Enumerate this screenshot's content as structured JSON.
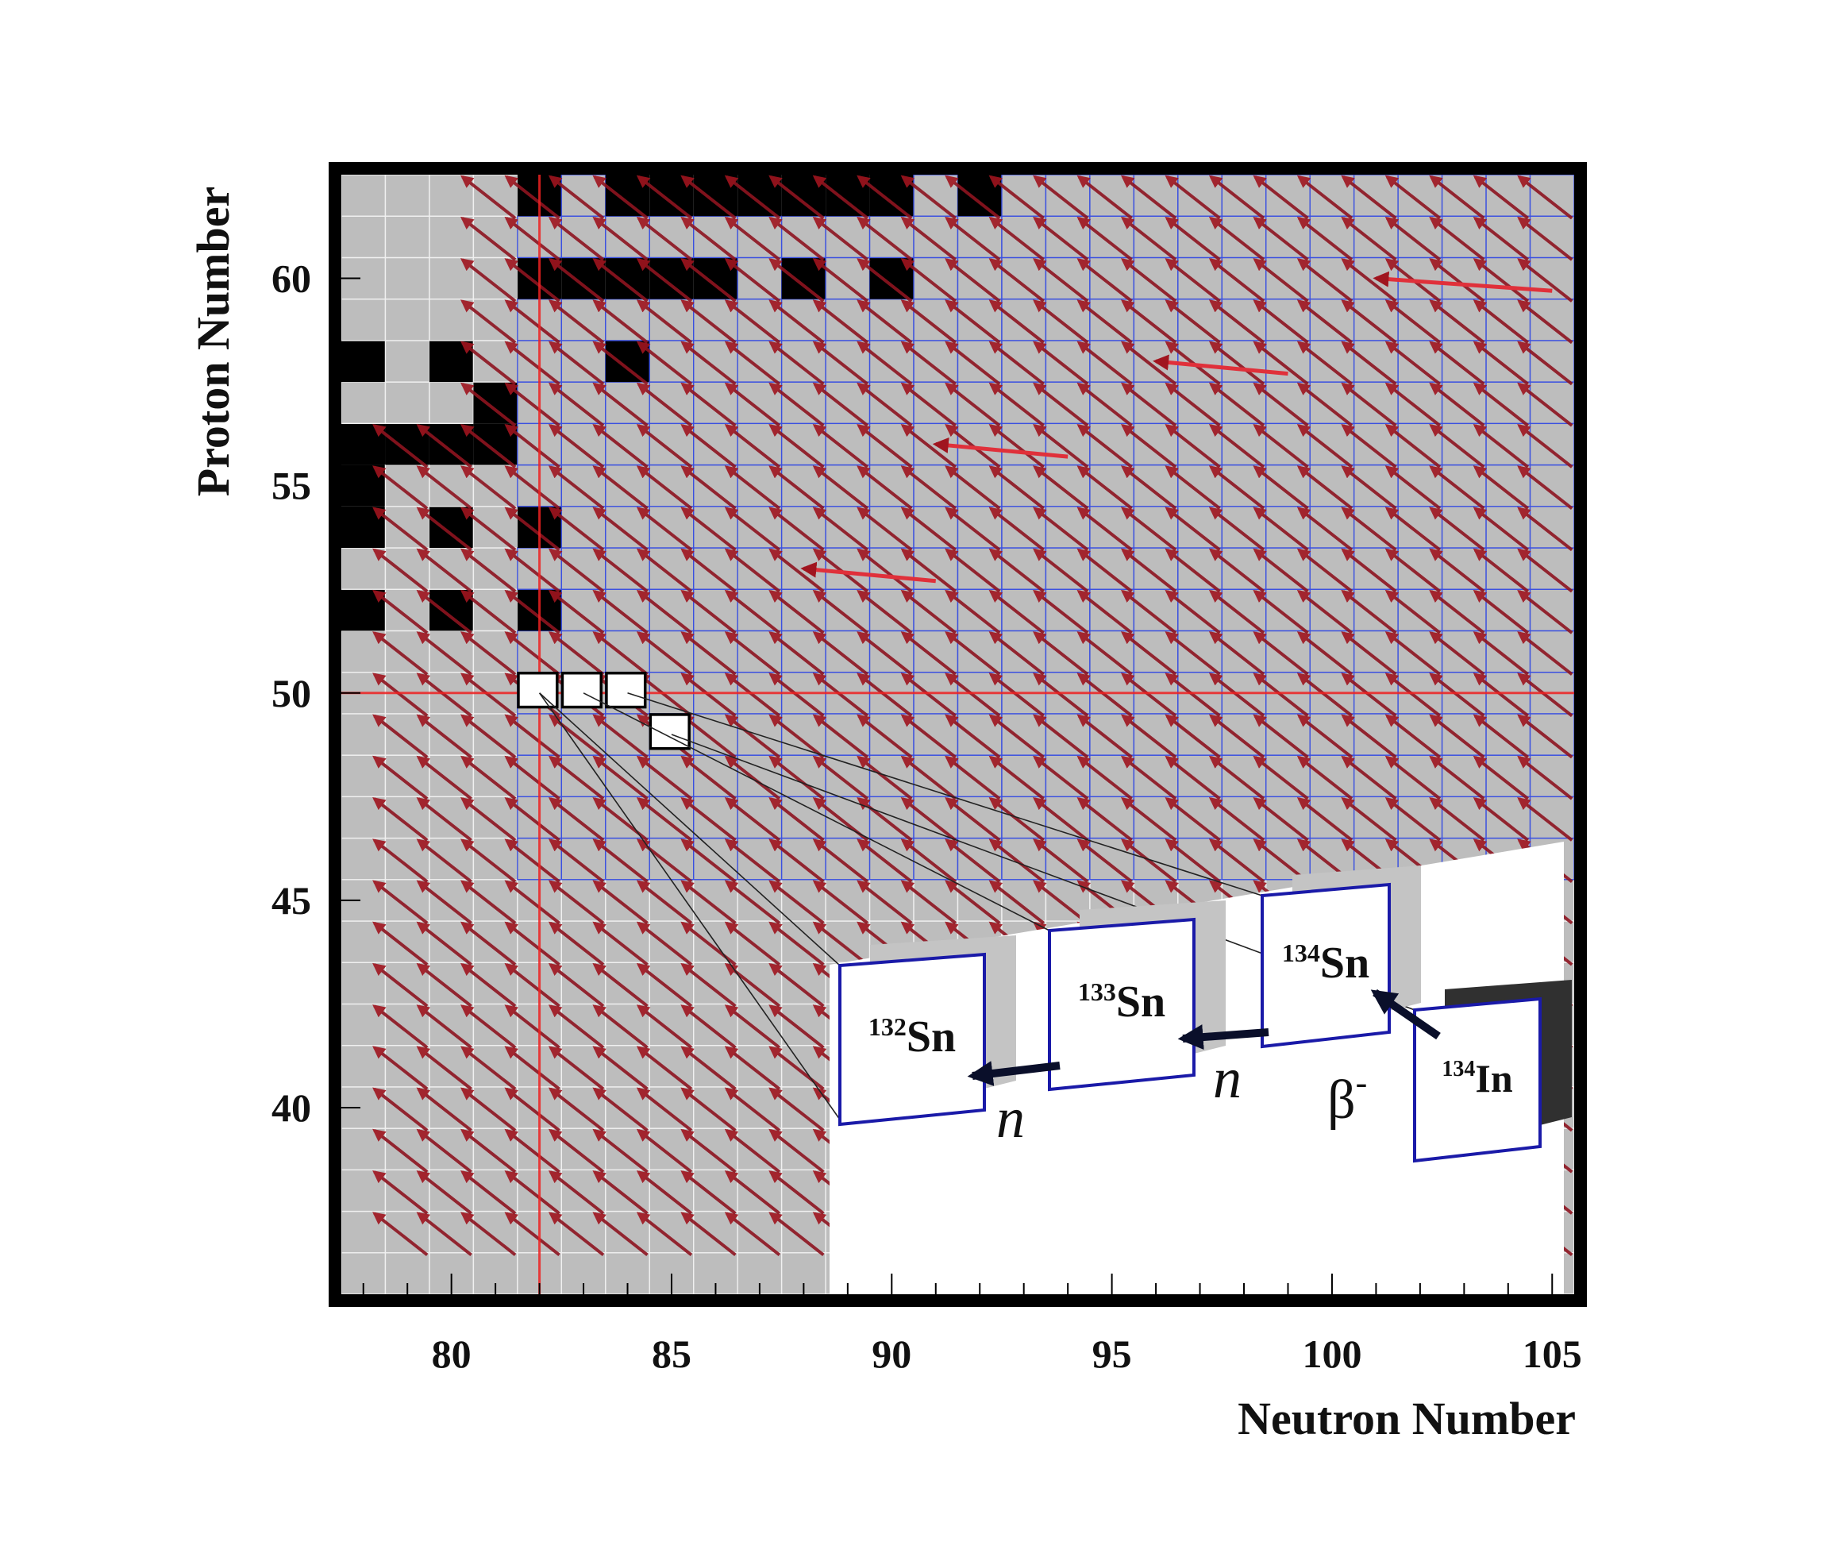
{
  "chart_data": {
    "type": "heatmap",
    "title": "",
    "xlabel": "Neutron Number",
    "ylabel": "Proton Number",
    "xlim": [
      77.5,
      105.5
    ],
    "ylim": [
      35.5,
      62.5
    ],
    "x_ticks": [
      80,
      85,
      90,
      95,
      100,
      105
    ],
    "y_ticks": [
      40,
      45,
      50,
      55,
      60
    ],
    "magic_lines": {
      "neutron": 82,
      "proton": 50,
      "color": "#ee2222"
    },
    "stable_nuclei": [
      [
        82,
        62
      ],
      [
        84,
        62
      ],
      [
        85,
        62
      ],
      [
        86,
        62
      ],
      [
        87,
        62
      ],
      [
        88,
        62
      ],
      [
        89,
        62
      ],
      [
        90,
        62
      ],
      [
        92,
        62
      ],
      [
        82,
        60
      ],
      [
        83,
        60
      ],
      [
        84,
        60
      ],
      [
        85,
        60
      ],
      [
        86,
        60
      ],
      [
        88,
        60
      ],
      [
        90,
        60
      ],
      [
        78,
        58
      ],
      [
        80,
        58
      ],
      [
        84,
        58
      ],
      [
        81,
        57
      ],
      [
        78,
        56
      ],
      [
        79,
        56
      ],
      [
        80,
        56
      ],
      [
        81,
        56
      ],
      [
        78,
        55
      ],
      [
        78,
        54
      ],
      [
        80,
        54
      ],
      [
        82,
        54
      ],
      [
        78,
        52
      ],
      [
        80,
        52
      ],
      [
        82,
        52
      ]
    ],
    "highlighted_nuclei": [
      [
        82,
        50
      ],
      [
        83,
        50
      ],
      [
        84,
        50
      ],
      [
        85,
        49
      ]
    ],
    "inset": {
      "nuclei": [
        {
          "mass": "132",
          "symbol": "Sn"
        },
        {
          "mass": "133",
          "symbol": "Sn"
        },
        {
          "mass": "134",
          "symbol": "Sn"
        },
        {
          "mass": "134",
          "symbol": "In"
        }
      ],
      "processes": [
        {
          "from": "134In",
          "to": "134Sn",
          "label": "β",
          "superscript": "-"
        },
        {
          "from": "134Sn",
          "to": "133Sn",
          "label": "n"
        },
        {
          "from": "133Sn",
          "to": "132Sn",
          "label": "n"
        }
      ]
    },
    "colors": {
      "unknown": "#bdbdbd",
      "stable": "#000000",
      "cell_border_upper": "#3a50e0",
      "cell_border_lower": "#f0f0f0",
      "cyan": "#21c4f2",
      "green": "#33cc33",
      "red": "#ee2211",
      "arrow": "#8e1420",
      "flow_warm": "#ff7a00",
      "flow_hot": "#ffff00",
      "inset_border": "#1a1aa8"
    }
  }
}
